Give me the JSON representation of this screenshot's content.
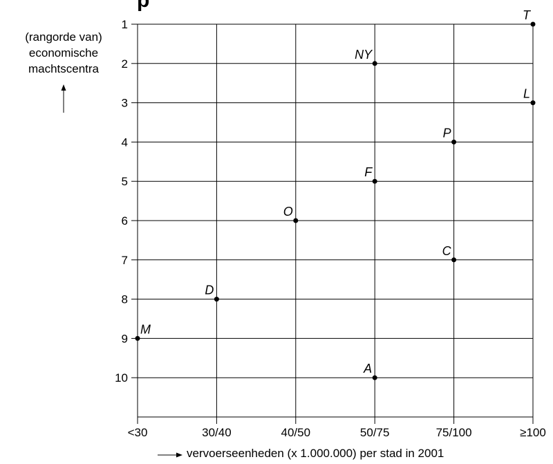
{
  "chart_data": {
    "type": "scatter",
    "title_fragment": "p",
    "ylabel_lines": [
      "(rangorde van)",
      "economische",
      "machtscentra"
    ],
    "xlabel": "vervoerseenheden (x 1.000.000) per stad in 2001",
    "x_categories": [
      "<30",
      "30/40",
      "40/50",
      "50/75",
      "75/100",
      "≥100"
    ],
    "y_ticks": [
      1,
      2,
      3,
      4,
      5,
      6,
      7,
      8,
      9,
      10
    ],
    "ylim": [
      1,
      11
    ],
    "y_inverted": true,
    "grid": true,
    "points": [
      {
        "label": "T",
        "x": "≥100",
        "y": 1
      },
      {
        "label": "NY",
        "x": "50/75",
        "y": 2
      },
      {
        "label": "L",
        "x": "≥100",
        "y": 3
      },
      {
        "label": "P",
        "x": "75/100",
        "y": 4
      },
      {
        "label": "F",
        "x": "50/75",
        "y": 5
      },
      {
        "label": "O",
        "x": "40/50",
        "y": 6
      },
      {
        "label": "C",
        "x": "75/100",
        "y": 7
      },
      {
        "label": "D",
        "x": "30/40",
        "y": 8
      },
      {
        "label": "M",
        "x": "<30",
        "y": 9
      },
      {
        "label": "A",
        "x": "50/75",
        "y": 10
      }
    ]
  }
}
